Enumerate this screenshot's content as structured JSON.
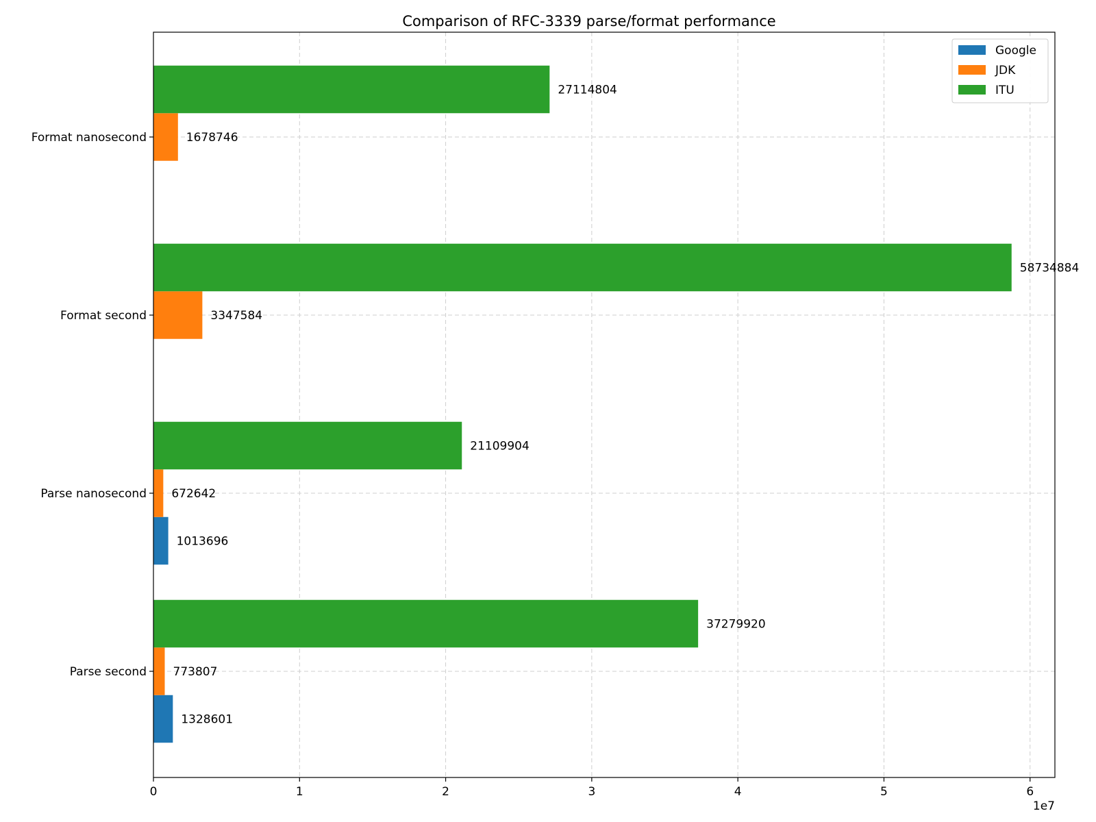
{
  "chart_data": {
    "type": "bar",
    "orientation": "horizontal",
    "title": "Comparison of RFC-3339 parse/format performance",
    "xlabel": "",
    "ylabel": "",
    "x_offset_label": "1e7",
    "xlim": [
      0,
      61700000
    ],
    "x_ticks": [
      0,
      10000000,
      20000000,
      30000000,
      40000000,
      50000000,
      60000000
    ],
    "x_tick_labels": [
      "0",
      "1",
      "2",
      "3",
      "4",
      "5",
      "6"
    ],
    "categories": [
      "Parse second",
      "Parse nanosecond",
      "Format second",
      "Format nanosecond"
    ],
    "series": [
      {
        "name": "Google",
        "color": "#1f77b4",
        "values": [
          1328601,
          1013696,
          null,
          null
        ]
      },
      {
        "name": "JDK",
        "color": "#ff7f0e",
        "values": [
          773807,
          672642,
          3347584,
          1678746
        ]
      },
      {
        "name": "ITU",
        "color": "#2ca02c",
        "values": [
          37279920,
          21109904,
          58734884,
          27114804
        ]
      }
    ],
    "grid": true,
    "legend_position": "top-right",
    "data_labels": true
  }
}
